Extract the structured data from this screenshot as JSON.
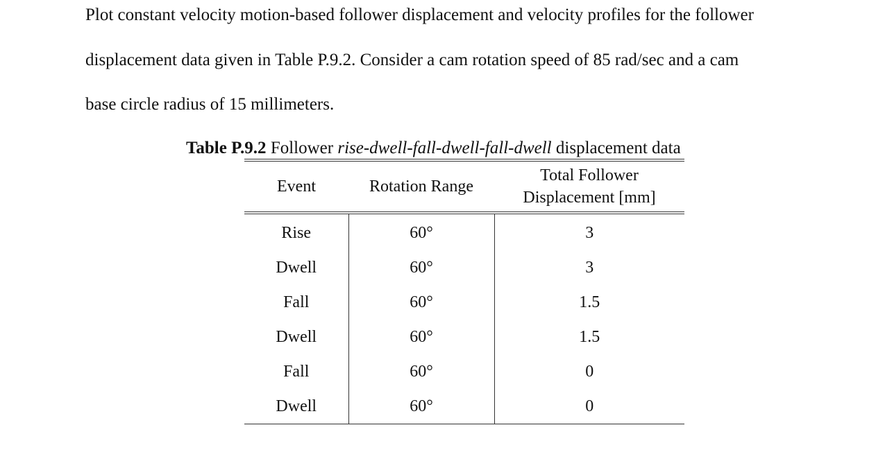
{
  "problem": {
    "lines": [
      "Plot constant velocity motion-based follower displacement and velocity profiles for the follower",
      "displacement data given in Table P.9.2.  Consider a cam rotation speed of 85 rad/sec and a cam",
      "base circle radius of 15 millimeters."
    ]
  },
  "table": {
    "caption": {
      "label": "Table P.9.2",
      "pre": " Follower ",
      "italic": "rise-dwell-fall-dwell-fall-dwell",
      "post": " displacement data"
    },
    "headers": {
      "event": "Event",
      "range": "Rotation Range",
      "disp_line1": "Total Follower",
      "disp_line2": "Displacement [mm]"
    },
    "rows": [
      {
        "event": "Rise",
        "range": "60°",
        "disp": "3"
      },
      {
        "event": "Dwell",
        "range": "60°",
        "disp": "3"
      },
      {
        "event": "Fall",
        "range": "60°",
        "disp": "1.5"
      },
      {
        "event": "Dwell",
        "range": "60°",
        "disp": "1.5"
      },
      {
        "event": "Fall",
        "range": "60°",
        "disp": "0"
      },
      {
        "event": "Dwell",
        "range": "60°",
        "disp": "0"
      }
    ]
  }
}
